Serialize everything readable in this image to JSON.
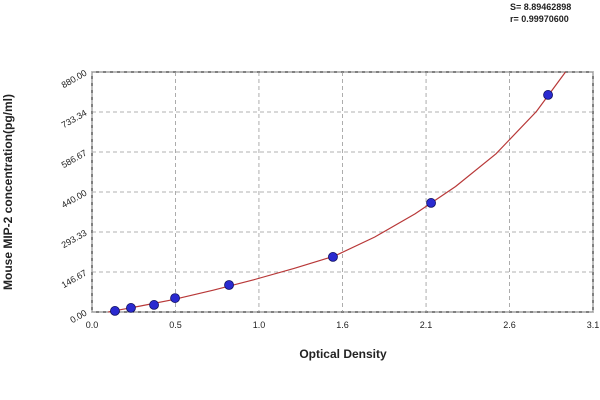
{
  "chart_data": {
    "type": "scatter",
    "x_label": "Optical Density",
    "y_label": "Mouse MIP-2 concentration(pg/ml)",
    "annotations": [
      "S= 8.89462898",
      "r= 0.99970600"
    ],
    "xlim": [
      0,
      3.1
    ],
    "ylim": [
      0,
      880
    ],
    "xticks": [
      {
        "value": 0,
        "label": "0.0"
      },
      {
        "value": 0.517,
        "label": "0.5"
      },
      {
        "value": 1.033,
        "label": "1.0"
      },
      {
        "value": 1.55,
        "label": "1.6"
      },
      {
        "value": 2.067,
        "label": "2.1"
      },
      {
        "value": 2.583,
        "label": "2.6"
      },
      {
        "value": 3.1,
        "label": "3.1"
      }
    ],
    "yticks": [
      {
        "value": 0,
        "label": "0.00"
      },
      {
        "value": 146.67,
        "label": "146.67"
      },
      {
        "value": 293.33,
        "label": "293.33"
      },
      {
        "value": 440,
        "label": "440.00"
      },
      {
        "value": 586.67,
        "label": "586.67"
      },
      {
        "value": 733.34,
        "label": "733.34"
      },
      {
        "value": 880,
        "label": "880.00"
      }
    ],
    "grid": true,
    "series": [
      {
        "color": "#2a2ad0",
        "x": [
          0.142,
          0.241,
          0.384,
          0.514,
          0.848,
          1.491,
          2.098,
          2.822
        ],
        "values": [
          4,
          15,
          26,
          51,
          99,
          202,
          400,
          796
        ]
      }
    ],
    "curve": {
      "color": "#b83838",
      "x": [
        0.1,
        0.3,
        0.5,
        0.75,
        1.0,
        1.25,
        1.5,
        1.75,
        2.0,
        2.25,
        2.5,
        2.75,
        2.93
      ],
      "values": [
        0,
        22,
        45,
        80,
        118,
        160,
        205,
        275,
        360,
        460,
        580,
        735,
        880
      ]
    }
  }
}
